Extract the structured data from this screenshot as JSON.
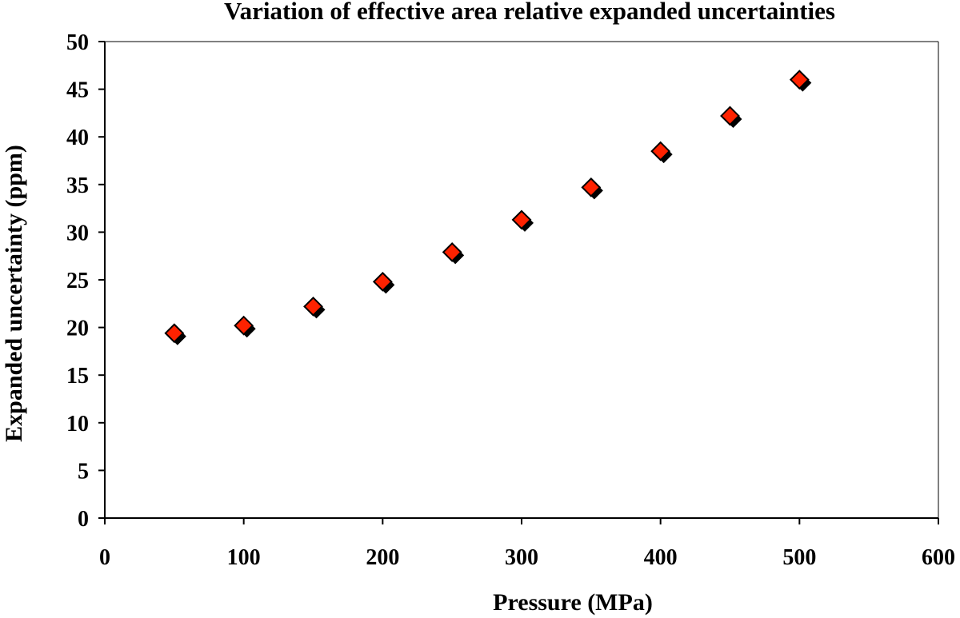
{
  "chart_data": {
    "type": "scatter",
    "title": "Variation of effective area relative expanded uncertainties",
    "xlabel": "Pressure (MPa)",
    "ylabel": "Expanded uncertainty (ppm)",
    "xlim": [
      0,
      600
    ],
    "ylim": [
      0,
      50
    ],
    "x_ticks": [
      0,
      100,
      200,
      300,
      400,
      500,
      600
    ],
    "y_ticks": [
      0,
      5,
      10,
      15,
      20,
      25,
      30,
      35,
      40,
      45,
      50
    ],
    "x_tick_labels": [
      "0",
      "100",
      "200",
      "300",
      "400",
      "500",
      "600"
    ],
    "y_tick_labels": [
      "0",
      "5",
      "10",
      "15",
      "20",
      "25",
      "30",
      "35",
      "40",
      "45",
      "50"
    ],
    "grid": false,
    "legend": "none",
    "marker": "diamond",
    "marker_color": "#ff2200",
    "marker_outline_color": "#000000",
    "series": [
      {
        "x": [
          50,
          100,
          150,
          200,
          250,
          300,
          350,
          400,
          450,
          500
        ],
        "y": [
          19.4,
          20.2,
          22.2,
          24.8,
          27.9,
          31.3,
          34.7,
          38.5,
          42.2,
          46.0
        ]
      }
    ]
  }
}
